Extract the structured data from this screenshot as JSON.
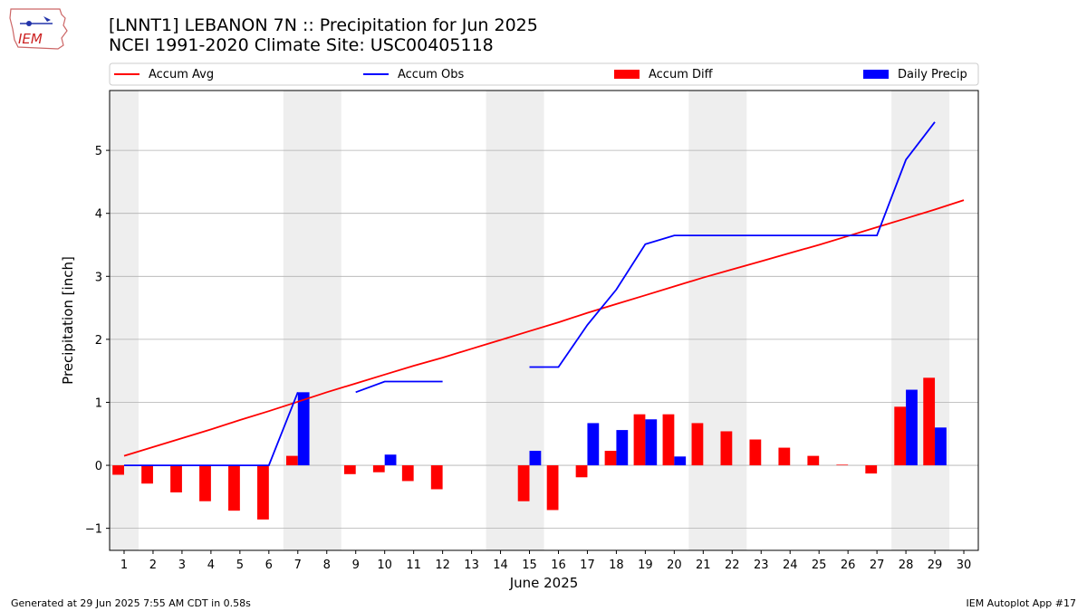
{
  "header": {
    "title_line1": "[LNNT1] LEBANON 7N :: Precipitation for Jun 2025",
    "title_line2": "NCEI 1991-2020 Climate Site: USC00405118",
    "logo_text": "IEM"
  },
  "footer": {
    "generated": "Generated at 29 Jun 2025 7:55 AM CDT in 0.58s",
    "app": "IEM Autoplot App #17"
  },
  "colors": {
    "avg": "#ff0000",
    "obs": "#0000ff",
    "diff": "#ff0000",
    "daily": "#0000ff",
    "weekend_shade": "#eeeeee",
    "grid": "#b0b0b0"
  },
  "chart_data": {
    "type": "bar",
    "xlabel": "June 2025",
    "ylabel": "Precipitation [inch]",
    "xlim": [
      0.5,
      30.5
    ],
    "ylim": [
      -1.35,
      5.95
    ],
    "yticks": [
      -1,
      0,
      1,
      2,
      3,
      4,
      5
    ],
    "ytick_labels": [
      "−1",
      "0",
      "1",
      "2",
      "3",
      "4",
      "5"
    ],
    "days": [
      1,
      2,
      3,
      4,
      5,
      6,
      7,
      8,
      9,
      10,
      11,
      12,
      13,
      14,
      15,
      16,
      17,
      18,
      19,
      20,
      21,
      22,
      23,
      24,
      25,
      26,
      27,
      28,
      29,
      30
    ],
    "grid": "horizontal",
    "legend_position": "top",
    "weekend_bands": [
      [
        0.5,
        1.5
      ],
      [
        6.5,
        8.5
      ],
      [
        13.5,
        15.5
      ],
      [
        20.5,
        22.5
      ],
      [
        27.5,
        29.5
      ]
    ],
    "series": [
      {
        "name": "Accum Avg",
        "kind": "line",
        "x": [
          1,
          2,
          3,
          4,
          5,
          6,
          7,
          8,
          9,
          10,
          11,
          12,
          13,
          14,
          15,
          16,
          17,
          18,
          19,
          20,
          21,
          22,
          23,
          24,
          25,
          26,
          27,
          28,
          29,
          30
        ],
        "values": [
          0.15,
          0.29,
          0.43,
          0.57,
          0.72,
          0.86,
          1.01,
          1.16,
          1.3,
          1.44,
          1.58,
          1.71,
          1.85,
          1.99,
          2.13,
          2.27,
          2.42,
          2.56,
          2.7,
          2.84,
          2.98,
          3.11,
          3.24,
          3.37,
          3.5,
          3.64,
          3.78,
          3.92,
          4.06,
          4.21
        ]
      },
      {
        "name": "Accum Obs",
        "kind": "line",
        "x": [
          1,
          2,
          3,
          4,
          5,
          6,
          7,
          8,
          9,
          10,
          11,
          12,
          13,
          14,
          15,
          16,
          17,
          18,
          19,
          20,
          21,
          22,
          23,
          24,
          25,
          26,
          27,
          28,
          29,
          30
        ],
        "values": [
          0,
          0,
          0,
          0,
          0,
          0,
          1.16,
          null,
          1.16,
          1.33,
          1.33,
          1.33,
          null,
          null,
          1.56,
          1.56,
          2.23,
          2.79,
          3.51,
          3.65,
          3.65,
          3.65,
          3.65,
          3.65,
          3.65,
          3.65,
          3.65,
          4.85,
          5.45,
          null
        ]
      },
      {
        "name": "Accum Diff",
        "kind": "bar",
        "x": [
          1,
          2,
          3,
          4,
          5,
          6,
          7,
          8,
          9,
          10,
          11,
          12,
          13,
          14,
          15,
          16,
          17,
          18,
          19,
          20,
          21,
          22,
          23,
          24,
          25,
          26,
          27,
          28,
          29,
          30
        ],
        "values": [
          -0.15,
          -0.29,
          -0.43,
          -0.57,
          -0.72,
          -0.86,
          0.15,
          null,
          -0.14,
          -0.11,
          -0.25,
          -0.38,
          null,
          null,
          -0.57,
          -0.71,
          -0.19,
          0.23,
          0.81,
          0.81,
          0.67,
          0.54,
          0.41,
          0.28,
          0.15,
          0.01,
          -0.13,
          0.93,
          1.39,
          null
        ]
      },
      {
        "name": "Daily Precip",
        "kind": "bar",
        "x": [
          1,
          2,
          3,
          4,
          5,
          6,
          7,
          8,
          9,
          10,
          11,
          12,
          13,
          14,
          15,
          16,
          17,
          18,
          19,
          20,
          21,
          22,
          23,
          24,
          25,
          26,
          27,
          28,
          29,
          30
        ],
        "values": [
          0,
          0,
          0,
          0,
          0,
          0,
          1.16,
          0,
          0,
          0.17,
          0,
          0,
          0,
          0,
          0.23,
          0,
          0.67,
          0.56,
          0.73,
          0.14,
          0,
          0,
          0,
          0,
          0,
          0,
          0,
          1.2,
          0.6,
          null
        ]
      }
    ]
  }
}
